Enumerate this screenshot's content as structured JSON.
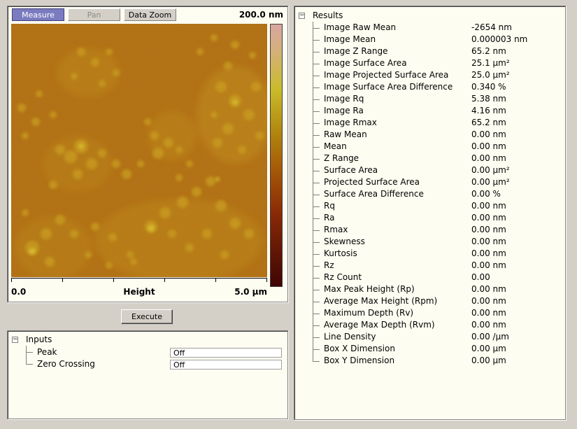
{
  "toolbar": {
    "measure": "Measure",
    "pan": "Pan",
    "zoom": "Data Zoom"
  },
  "image": {
    "scale_label": "200.0 nm",
    "axis_left": "0.0",
    "axis_mid": "Height",
    "axis_right": "5.0 µm"
  },
  "execute_label": "Execute",
  "inputs": {
    "title": "Inputs",
    "items": [
      {
        "label": "Peak",
        "value": "Off"
      },
      {
        "label": "Zero Crossing",
        "value": "Off"
      }
    ]
  },
  "results": {
    "title": "Results",
    "items": [
      {
        "label": "Image Raw Mean",
        "value": "-2654 nm"
      },
      {
        "label": "Image Mean",
        "value": "0.000003 nm"
      },
      {
        "label": "Image Z Range",
        "value": "65.2 nm"
      },
      {
        "label": "Image Surface Area",
        "value": "25.1 µm²"
      },
      {
        "label": "Image Projected Surface Area",
        "value": "25.0 µm²"
      },
      {
        "label": "Image Surface Area Difference",
        "value": "0.340 %"
      },
      {
        "label": "Image Rq",
        "value": "5.38 nm"
      },
      {
        "label": "Image Ra",
        "value": "4.16 nm"
      },
      {
        "label": "Image Rmax",
        "value": "65.2 nm"
      },
      {
        "label": "Raw Mean",
        "value": "0.00 nm"
      },
      {
        "label": "Mean",
        "value": "0.00 nm"
      },
      {
        "label": "Z Range",
        "value": "0.00 nm"
      },
      {
        "label": "Surface Area",
        "value": "0.00 µm²"
      },
      {
        "label": "Projected Surface Area",
        "value": "0.00 µm²"
      },
      {
        "label": "Surface Area Difference",
        "value": "0.00 %"
      },
      {
        "label": "Rq",
        "value": "0.00 nm"
      },
      {
        "label": "Ra",
        "value": "0.00 nm"
      },
      {
        "label": "Rmax",
        "value": "0.00 nm"
      },
      {
        "label": "Skewness",
        "value": "0.00 nm"
      },
      {
        "label": "Kurtosis",
        "value": "0.00 nm"
      },
      {
        "label": "Rz",
        "value": "0.00 nm"
      },
      {
        "label": "Rz Count",
        "value": "0.00"
      },
      {
        "label": "Max Peak Height (Rp)",
        "value": "0.00 nm"
      },
      {
        "label": "Average Max Height (Rpm)",
        "value": "0.00 nm"
      },
      {
        "label": "Maximum Depth (Rv)",
        "value": "0.00 nm"
      },
      {
        "label": "Average Max Depth (Rvm)",
        "value": "0.00 nm"
      },
      {
        "label": "Line Density",
        "value": "0.00 /µm"
      },
      {
        "label": "Box X Dimension",
        "value": "0.00 µm"
      },
      {
        "label": "Box Y Dimension",
        "value": "0.00 µm"
      }
    ]
  }
}
